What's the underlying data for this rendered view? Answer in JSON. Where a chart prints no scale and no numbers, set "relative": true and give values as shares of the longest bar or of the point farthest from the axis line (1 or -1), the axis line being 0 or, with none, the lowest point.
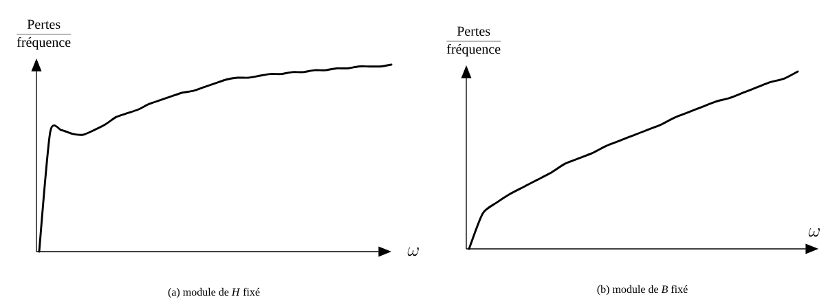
{
  "chart_data": [
    {
      "type": "line",
      "title": "(a) module de *H*  fixé",
      "xlabel": "\\omega",
      "ylabel": "\\frac{\\mbox{Pertes}}{\\mbox{fréquence}}",
      "relative": true,
      "color": "#000000",
      "categories": [
        null,
        null,
        null,
        null,
        null,
        null,
        null,
        null,
        null,
        null,
        null,
        null,
        null,
        null,
        null,
        null,
        null,
        null,
        null,
        null,
        null,
        null,
        null,
        null,
        null,
        null,
        null,
        null,
        null,
        null,
        null,
        null,
        null
      ],
      "values": [
        0,
        0.64,
        0.65,
        0.63,
        0.625,
        0.65,
        0.68,
        0.72,
        0.74,
        0.76,
        0.79,
        0.81,
        0.83,
        0.85,
        0.86,
        0.88,
        0.9,
        0.92,
        0.93,
        0.93,
        0.94,
        0.95,
        0.95,
        0.96,
        0.96,
        0.97,
        0.97,
        0.98,
        0.98,
        0.99,
        0.99,
        0.99,
        1.0
      ]
    },
    {
      "type": "line",
      "title": "(b) module de *B* fixé",
      "xlabel": "\\omega",
      "ylabel": "\\frac{\\mbox{Pertes}}{\\mbox{fréquence}}",
      "relative": true,
      "color": "#000000",
      "categories": [
        null,
        null,
        null,
        null,
        null,
        null,
        null,
        null,
        null,
        null,
        null,
        null,
        null,
        null,
        null,
        null,
        null,
        null,
        null,
        null,
        null,
        null,
        null,
        null,
        null
      ],
      "values": [
        0,
        0.2,
        0.26,
        0.31,
        0.35,
        0.39,
        0.43,
        0.48,
        0.51,
        0.54,
        0.58,
        0.61,
        0.64,
        0.67,
        0.7,
        0.74,
        0.77,
        0.8,
        0.83,
        0.85,
        0.88,
        0.91,
        0.94,
        0.96,
        1.0
      ]
    }
  ]
}
